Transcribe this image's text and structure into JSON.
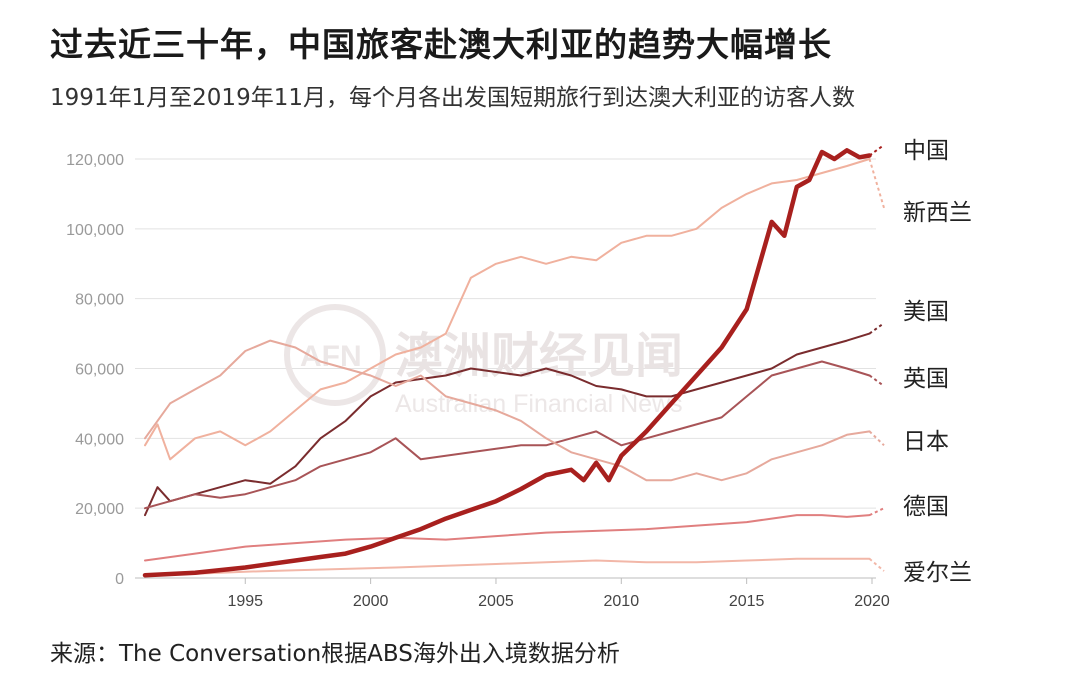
{
  "title": "过去近三十年，中国旅客赴澳大利亚的趋势大幅增长",
  "subtitle": "1991年1月至2019年11月，每个月各出发国短期旅行到达澳大利亚的访客人数",
  "source": "来源：The Conversation根据ABS海外出入境数据分析",
  "watermark": {
    "text_cn": "澳洲财经见闻",
    "text_en": "Australian Financial News",
    "logo": "AFN"
  },
  "chart_data": {
    "type": "line",
    "xlim": [
      1991,
      2020
    ],
    "ylim": [
      0,
      120000
    ],
    "x_ticks": [
      1995,
      2000,
      2005,
      2010,
      2015,
      2020
    ],
    "x_tick_labels": [
      "1995",
      "2000",
      "2005",
      "2010",
      "2015",
      "2020"
    ],
    "y_ticks": [
      0,
      20000,
      40000,
      60000,
      80000,
      100000,
      120000
    ],
    "y_tick_labels": [
      "0",
      "20,000",
      "40,000",
      "60,000",
      "80,000",
      "100,000",
      "120,000"
    ],
    "grid": "horizontal",
    "legend": "direct labels at right end of lines",
    "series": [
      {
        "name": "中国",
        "color": "#a8201e",
        "emphasis": true,
        "end": 124000,
        "points": [
          [
            1991,
            800
          ],
          [
            1993,
            1500
          ],
          [
            1995,
            3000
          ],
          [
            1997,
            5000
          ],
          [
            1998,
            6000
          ],
          [
            1999,
            7000
          ],
          [
            2000,
            9000
          ],
          [
            2001,
            11500
          ],
          [
            2002,
            14000
          ],
          [
            2003,
            17000
          ],
          [
            2004,
            19500
          ],
          [
            2005,
            22000
          ],
          [
            2006,
            25500
          ],
          [
            2007,
            29500
          ],
          [
            2008,
            31000
          ],
          [
            2008.5,
            28000
          ],
          [
            2009,
            33000
          ],
          [
            2009.5,
            28000
          ],
          [
            2010,
            35000
          ],
          [
            2011,
            42000
          ],
          [
            2012,
            50000
          ],
          [
            2013,
            58000
          ],
          [
            2014,
            66000
          ],
          [
            2015,
            77000
          ],
          [
            2016,
            102000
          ],
          [
            2016.5,
            98000
          ],
          [
            2017,
            112000
          ],
          [
            2017.5,
            114000
          ],
          [
            2018,
            122000
          ],
          [
            2018.5,
            120000
          ],
          [
            2019,
            122500
          ],
          [
            2019.5,
            120500
          ],
          [
            2019.9,
            121000
          ]
        ]
      },
      {
        "name": "新西兰",
        "color": "#f0b19e",
        "emphasis": false,
        "end": 106000,
        "points": [
          [
            1991,
            38000
          ],
          [
            1991.5,
            44000
          ],
          [
            1992,
            34000
          ],
          [
            1993,
            40000
          ],
          [
            1994,
            42000
          ],
          [
            1995,
            38000
          ],
          [
            1996,
            42000
          ],
          [
            1997,
            48000
          ],
          [
            1998,
            54000
          ],
          [
            1999,
            56000
          ],
          [
            2000,
            60000
          ],
          [
            2001,
            64000
          ],
          [
            2002,
            66000
          ],
          [
            2003,
            70000
          ],
          [
            2004,
            86000
          ],
          [
            2005,
            90000
          ],
          [
            2006,
            92000
          ],
          [
            2007,
            90000
          ],
          [
            2008,
            92000
          ],
          [
            2009,
            91000
          ],
          [
            2010,
            96000
          ],
          [
            2011,
            98000
          ],
          [
            2012,
            98000
          ],
          [
            2013,
            100000
          ],
          [
            2014,
            106000
          ],
          [
            2015,
            110000
          ],
          [
            2016,
            113000
          ],
          [
            2017,
            114000
          ],
          [
            2018,
            116000
          ],
          [
            2019,
            118000
          ],
          [
            2019.9,
            120000
          ]
        ]
      },
      {
        "name": "美国",
        "color": "#7a2c2e",
        "emphasis": false,
        "end": 73000,
        "points": [
          [
            1991,
            18000
          ],
          [
            1991.5,
            26000
          ],
          [
            1992,
            22000
          ],
          [
            1993,
            24000
          ],
          [
            1994,
            26000
          ],
          [
            1995,
            28000
          ],
          [
            1996,
            27000
          ],
          [
            1997,
            32000
          ],
          [
            1998,
            40000
          ],
          [
            1999,
            45000
          ],
          [
            2000,
            52000
          ],
          [
            2001,
            56000
          ],
          [
            2002,
            57000
          ],
          [
            2003,
            58000
          ],
          [
            2004,
            60000
          ],
          [
            2005,
            59000
          ],
          [
            2006,
            58000
          ],
          [
            2007,
            60000
          ],
          [
            2008,
            58000
          ],
          [
            2009,
            55000
          ],
          [
            2010,
            54000
          ],
          [
            2011,
            52000
          ],
          [
            2012,
            52000
          ],
          [
            2013,
            54000
          ],
          [
            2014,
            56000
          ],
          [
            2015,
            58000
          ],
          [
            2016,
            60000
          ],
          [
            2017,
            64000
          ],
          [
            2018,
            66000
          ],
          [
            2019,
            68000
          ],
          [
            2019.9,
            70000
          ]
        ]
      },
      {
        "name": "英国",
        "color": "#a85457",
        "emphasis": false,
        "end": 55000,
        "points": [
          [
            1991,
            20000
          ],
          [
            1992,
            22000
          ],
          [
            1993,
            24000
          ],
          [
            1994,
            23000
          ],
          [
            1995,
            24000
          ],
          [
            1996,
            26000
          ],
          [
            1997,
            28000
          ],
          [
            1998,
            32000
          ],
          [
            1999,
            34000
          ],
          [
            2000,
            36000
          ],
          [
            2001,
            40000
          ],
          [
            2002,
            34000
          ],
          [
            2003,
            35000
          ],
          [
            2004,
            36000
          ],
          [
            2005,
            37000
          ],
          [
            2006,
            38000
          ],
          [
            2007,
            38000
          ],
          [
            2008,
            40000
          ],
          [
            2009,
            42000
          ],
          [
            2010,
            38000
          ],
          [
            2011,
            40000
          ],
          [
            2012,
            42000
          ],
          [
            2013,
            44000
          ],
          [
            2014,
            46000
          ],
          [
            2015,
            52000
          ],
          [
            2016,
            58000
          ],
          [
            2017,
            60000
          ],
          [
            2018,
            62000
          ],
          [
            2019,
            60000
          ],
          [
            2019.9,
            58000
          ]
        ]
      },
      {
        "name": "日本",
        "color": "#e6a99c",
        "emphasis": false,
        "end": 38000,
        "points": [
          [
            1991,
            40000
          ],
          [
            1992,
            50000
          ],
          [
            1993,
            54000
          ],
          [
            1994,
            58000
          ],
          [
            1995,
            65000
          ],
          [
            1996,
            68000
          ],
          [
            1997,
            66000
          ],
          [
            1998,
            62000
          ],
          [
            1999,
            60000
          ],
          [
            2000,
            58000
          ],
          [
            2001,
            55000
          ],
          [
            2002,
            58000
          ],
          [
            2003,
            52000
          ],
          [
            2004,
            50000
          ],
          [
            2005,
            48000
          ],
          [
            2006,
            45000
          ],
          [
            2007,
            40000
          ],
          [
            2008,
            36000
          ],
          [
            2009,
            34000
          ],
          [
            2010,
            32000
          ],
          [
            2011,
            28000
          ],
          [
            2012,
            28000
          ],
          [
            2013,
            30000
          ],
          [
            2014,
            28000
          ],
          [
            2015,
            30000
          ],
          [
            2016,
            34000
          ],
          [
            2017,
            36000
          ],
          [
            2018,
            38000
          ],
          [
            2019,
            41000
          ],
          [
            2019.9,
            42000
          ]
        ]
      },
      {
        "name": "德国",
        "color": "#e07f7f",
        "emphasis": false,
        "end": 20000,
        "points": [
          [
            1991,
            5000
          ],
          [
            1993,
            7000
          ],
          [
            1995,
            9000
          ],
          [
            1997,
            10000
          ],
          [
            1999,
            11000
          ],
          [
            2001,
            11500
          ],
          [
            2003,
            11000
          ],
          [
            2005,
            12000
          ],
          [
            2007,
            13000
          ],
          [
            2009,
            13500
          ],
          [
            2011,
            14000
          ],
          [
            2013,
            15000
          ],
          [
            2015,
            16000
          ],
          [
            2016,
            17000
          ],
          [
            2017,
            18000
          ],
          [
            2018,
            18000
          ],
          [
            2019,
            17500
          ],
          [
            2019.9,
            18000
          ]
        ]
      },
      {
        "name": "爱尔兰",
        "color": "#f2b7a8",
        "emphasis": false,
        "end": 2000,
        "points": [
          [
            1991,
            800
          ],
          [
            1993,
            1200
          ],
          [
            1995,
            1800
          ],
          [
            1997,
            2200
          ],
          [
            1999,
            2600
          ],
          [
            2001,
            3000
          ],
          [
            2003,
            3500
          ],
          [
            2005,
            4000
          ],
          [
            2007,
            4500
          ],
          [
            2009,
            5000
          ],
          [
            2011,
            4500
          ],
          [
            2013,
            4500
          ],
          [
            2015,
            5000
          ],
          [
            2017,
            5500
          ],
          [
            2019,
            5500
          ],
          [
            2019.9,
            5500
          ]
        ]
      }
    ]
  }
}
